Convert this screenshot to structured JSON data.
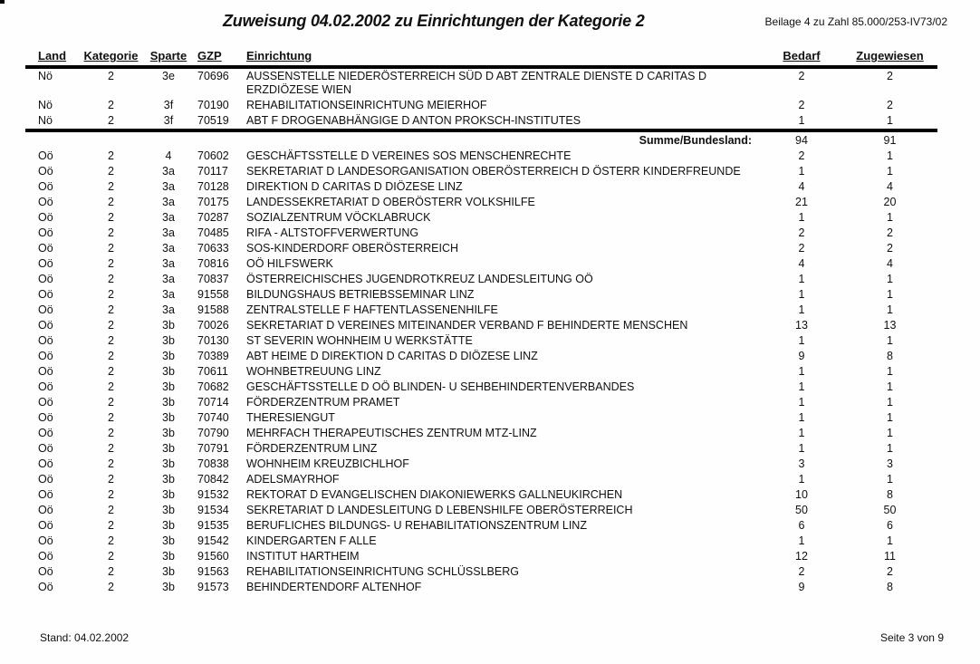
{
  "page": {
    "title": "Zuweisung 04.02.2002 zu Einrichtungen der Kategorie 2",
    "annotation": "Beilage 4 zu Zahl 85.000/253-IV73/02",
    "footer_left": "Stand: 04.02.2002",
    "footer_right": "Seite 3 von 9"
  },
  "table": {
    "headers": [
      "Land",
      "Kategorie",
      "Sparte",
      "GZP",
      "Einrichtung",
      "Bedarf",
      "Zugewiesen"
    ],
    "rows": [
      {
        "land": "Nö",
        "kategorie": "2",
        "sparte": "3e",
        "gzp": "70696",
        "einrichtung": "AUSSENSTELLE NIEDERÖSTERREICH SÜD D ABT ZENTRALE DIENSTE D CARITAS D ERZDIÖZESE WIEN",
        "bedarf": "2",
        "zugewiesen": "2"
      },
      {
        "land": "Nö",
        "kategorie": "2",
        "sparte": "3f",
        "gzp": "70190",
        "einrichtung": "REHABILITATIONSEINRICHTUNG MEIERHOF",
        "bedarf": "2",
        "zugewiesen": "2"
      },
      {
        "land": "Nö",
        "kategorie": "2",
        "sparte": "3f",
        "gzp": "70519",
        "einrichtung": "ABT F DROGENABHÄNGIGE D ANTON PROKSCH-INSTITUTES",
        "bedarf": "1",
        "zugewiesen": "1"
      },
      {
        "type": "summary",
        "label": "Summe/Bundesland:",
        "bedarf": "94",
        "zugewiesen": "91"
      },
      {
        "land": "Oö",
        "kategorie": "2",
        "sparte": "4",
        "gzp": "70602",
        "einrichtung": "GESCHÄFTSSTELLE D VEREINES SOS MENSCHENRECHTE",
        "bedarf": "2",
        "zugewiesen": "1"
      },
      {
        "land": "Oö",
        "kategorie": "2",
        "sparte": "3a",
        "gzp": "70117",
        "einrichtung": "SEKRETARIAT D LANDESORGANISATION OBERÖSTERREICH D ÖSTERR KINDERFREUNDE",
        "bedarf": "1",
        "zugewiesen": "1"
      },
      {
        "land": "Oö",
        "kategorie": "2",
        "sparte": "3a",
        "gzp": "70128",
        "einrichtung": "DIREKTION D CARITAS D DIÖZESE LINZ",
        "bedarf": "4",
        "zugewiesen": "4"
      },
      {
        "land": "Oö",
        "kategorie": "2",
        "sparte": "3a",
        "gzp": "70175",
        "einrichtung": "LANDESSEKRETARIAT D OBERÖSTERR VOLKSHILFE",
        "bedarf": "21",
        "zugewiesen": "20"
      },
      {
        "land": "Oö",
        "kategorie": "2",
        "sparte": "3a",
        "gzp": "70287",
        "einrichtung": "SOZIALZENTRUM VÖCKLABRUCK",
        "bedarf": "1",
        "zugewiesen": "1"
      },
      {
        "land": "Oö",
        "kategorie": "2",
        "sparte": "3a",
        "gzp": "70485",
        "einrichtung": "RIFA - ALTSTOFFVERWERTUNG",
        "bedarf": "2",
        "zugewiesen": "2"
      },
      {
        "land": "Oö",
        "kategorie": "2",
        "sparte": "3a",
        "gzp": "70633",
        "einrichtung": "SOS-KINDERDORF OBERÖSTERREICH",
        "bedarf": "2",
        "zugewiesen": "2"
      },
      {
        "land": "Oö",
        "kategorie": "2",
        "sparte": "3a",
        "gzp": "70816",
        "einrichtung": "OÖ HILFSWERK",
        "bedarf": "4",
        "zugewiesen": "4"
      },
      {
        "land": "Oö",
        "kategorie": "2",
        "sparte": "3a",
        "gzp": "70837",
        "einrichtung": "ÖSTERREICHISCHES JUGENDROTKREUZ LANDESLEITUNG OÖ",
        "bedarf": "1",
        "zugewiesen": "1"
      },
      {
        "land": "Oö",
        "kategorie": "2",
        "sparte": "3a",
        "gzp": "91558",
        "einrichtung": "BILDUNGSHAUS BETRIEBSSEMINAR LINZ",
        "bedarf": "1",
        "zugewiesen": "1"
      },
      {
        "land": "Oö",
        "kategorie": "2",
        "sparte": "3a",
        "gzp": "91588",
        "einrichtung": "ZENTRALSTELLE F HAFTENTLASSENENHILFE",
        "bedarf": "1",
        "zugewiesen": "1"
      },
      {
        "land": "Oö",
        "kategorie": "2",
        "sparte": "3b",
        "gzp": "70026",
        "einrichtung": "SEKRETARIAT D VEREINES MITEINANDER VERBAND F BEHINDERTE MENSCHEN",
        "bedarf": "13",
        "zugewiesen": "13"
      },
      {
        "land": "Oö",
        "kategorie": "2",
        "sparte": "3b",
        "gzp": "70130",
        "einrichtung": "ST SEVERIN WOHNHEIM U WERKSTÄTTE",
        "bedarf": "1",
        "zugewiesen": "1"
      },
      {
        "land": "Oö",
        "kategorie": "2",
        "sparte": "3b",
        "gzp": "70389",
        "einrichtung": "ABT HEIME D DIREKTION D CARITAS D DIÖZESE LINZ",
        "bedarf": "9",
        "zugewiesen": "8"
      },
      {
        "land": "Oö",
        "kategorie": "2",
        "sparte": "3b",
        "gzp": "70611",
        "einrichtung": "WOHNBETREUUNG LINZ",
        "bedarf": "1",
        "zugewiesen": "1"
      },
      {
        "land": "Oö",
        "kategorie": "2",
        "sparte": "3b",
        "gzp": "70682",
        "einrichtung": "GESCHÄFTSSTELLE D OÖ BLINDEN- U SEHBEHINDERTENVERBANDES",
        "bedarf": "1",
        "zugewiesen": "1"
      },
      {
        "land": "Oö",
        "kategorie": "2",
        "sparte": "3b",
        "gzp": "70714",
        "einrichtung": "FÖRDERZENTRUM PRAMET",
        "bedarf": "1",
        "zugewiesen": "1"
      },
      {
        "land": "Oö",
        "kategorie": "2",
        "sparte": "3b",
        "gzp": "70740",
        "einrichtung": "THERESIENGUT",
        "bedarf": "1",
        "zugewiesen": "1"
      },
      {
        "land": "Oö",
        "kategorie": "2",
        "sparte": "3b",
        "gzp": "70790",
        "einrichtung": "MEHRFACH THERAPEUTISCHES ZENTRUM MTZ-LINZ",
        "bedarf": "1",
        "zugewiesen": "1"
      },
      {
        "land": "Oö",
        "kategorie": "2",
        "sparte": "3b",
        "gzp": "70791",
        "einrichtung": "FÖRDERZENTRUM LINZ",
        "bedarf": "1",
        "zugewiesen": "1"
      },
      {
        "land": "Oö",
        "kategorie": "2",
        "sparte": "3b",
        "gzp": "70838",
        "einrichtung": "WOHNHEIM KREUZBICHLHOF",
        "bedarf": "3",
        "zugewiesen": "3"
      },
      {
        "land": "Oö",
        "kategorie": "2",
        "sparte": "3b",
        "gzp": "70842",
        "einrichtung": "ADELSMAYRHOF",
        "bedarf": "1",
        "zugewiesen": "1"
      },
      {
        "land": "Oö",
        "kategorie": "2",
        "sparte": "3b",
        "gzp": "91532",
        "einrichtung": "REKTORAT D EVANGELISCHEN DIAKONIEWERKS GALLNEUKIRCHEN",
        "bedarf": "10",
        "zugewiesen": "8"
      },
      {
        "land": "Oö",
        "kategorie": "2",
        "sparte": "3b",
        "gzp": "91534",
        "einrichtung": "SEKRETARIAT D LANDESLEITUNG D LEBENSHILFE OBERÖSTERREICH",
        "bedarf": "50",
        "zugewiesen": "50"
      },
      {
        "land": "Oö",
        "kategorie": "2",
        "sparte": "3b",
        "gzp": "91535",
        "einrichtung": "BERUFLICHES BILDUNGS- U REHABILITATIONSZENTRUM LINZ",
        "bedarf": "6",
        "zugewiesen": "6"
      },
      {
        "land": "Oö",
        "kategorie": "2",
        "sparte": "3b",
        "gzp": "91542",
        "einrichtung": "KINDERGARTEN F ALLE",
        "bedarf": "1",
        "zugewiesen": "1"
      },
      {
        "land": "Oö",
        "kategorie": "2",
        "sparte": "3b",
        "gzp": "91560",
        "einrichtung": "INSTITUT HARTHEIM",
        "bedarf": "12",
        "zugewiesen": "11"
      },
      {
        "land": "Oö",
        "kategorie": "2",
        "sparte": "3b",
        "gzp": "91563",
        "einrichtung": "REHABILITATIONSEINRICHTUNG SCHLÜSSLBERG",
        "bedarf": "2",
        "zugewiesen": "2"
      },
      {
        "land": "Oö",
        "kategorie": "2",
        "sparte": "3b",
        "gzp": "91573",
        "einrichtung": "BEHINDERTENDORF ALTENHOF",
        "bedarf": "9",
        "zugewiesen": "8"
      }
    ]
  }
}
